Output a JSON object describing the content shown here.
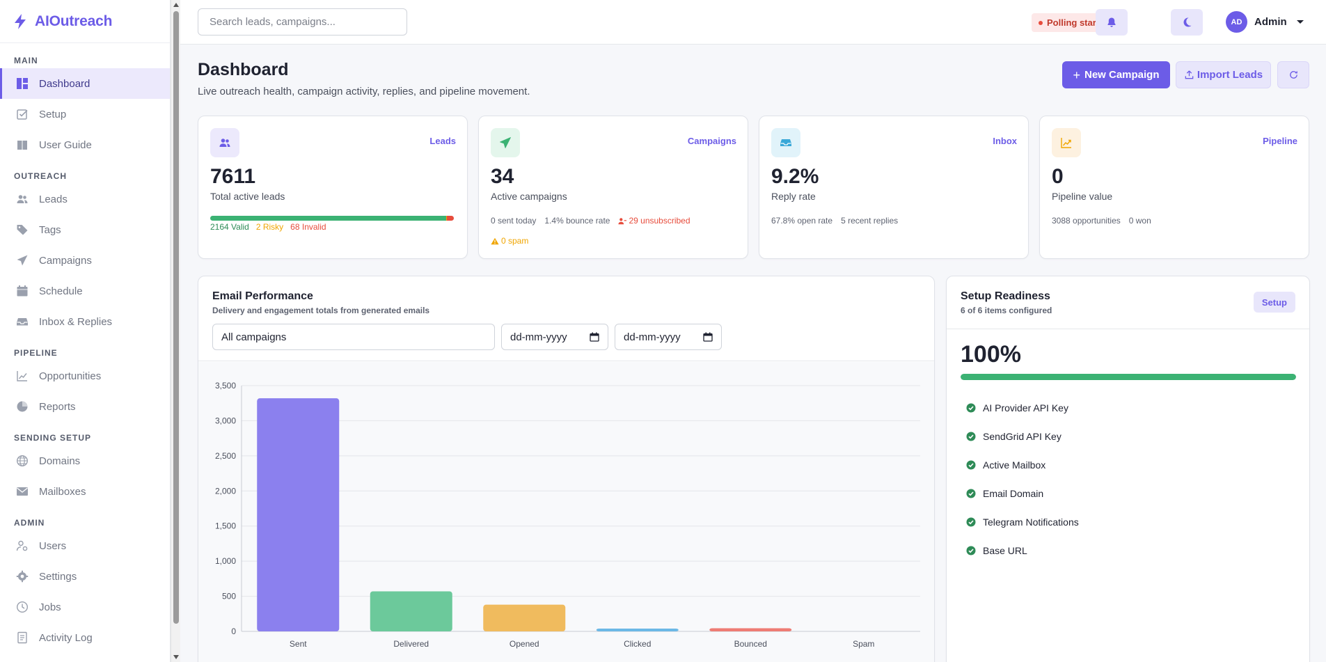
{
  "app": {
    "name": "AIOutreach"
  },
  "sidebar": {
    "sections": [
      {
        "title": "MAIN",
        "items": [
          {
            "label": "Dashboard",
            "icon": "dashboard-icon",
            "active": true
          },
          {
            "label": "Setup",
            "icon": "checkbox-icon"
          },
          {
            "label": "User Guide",
            "icon": "book-icon"
          }
        ]
      },
      {
        "title": "OUTREACH",
        "items": [
          {
            "label": "Leads",
            "icon": "users-icon"
          },
          {
            "label": "Tags",
            "icon": "tag-icon"
          },
          {
            "label": "Campaigns",
            "icon": "paper-plane-icon"
          },
          {
            "label": "Schedule",
            "icon": "calendar-icon"
          },
          {
            "label": "Inbox & Replies",
            "icon": "inbox-icon"
          }
        ]
      },
      {
        "title": "PIPELINE",
        "items": [
          {
            "label": "Opportunities",
            "icon": "trend-icon"
          },
          {
            "label": "Reports",
            "icon": "pie-chart-icon"
          }
        ]
      },
      {
        "title": "SENDING SETUP",
        "items": [
          {
            "label": "Domains",
            "icon": "globe-icon"
          },
          {
            "label": "Mailboxes",
            "icon": "envelope-icon"
          }
        ]
      },
      {
        "title": "ADMIN",
        "items": [
          {
            "label": "Users",
            "icon": "user-gear-icon"
          },
          {
            "label": "Settings",
            "icon": "gear-icon"
          },
          {
            "label": "Jobs",
            "icon": "clock-icon"
          },
          {
            "label": "Activity Log",
            "icon": "document-icon"
          }
        ]
      }
    ]
  },
  "topbar": {
    "search_placeholder": "Search leads, campaigns...",
    "polling_status": "Polling started",
    "user_initials": "AD",
    "user_name": "Admin"
  },
  "header": {
    "title": "Dashboard",
    "subtitle": "Live outreach health, campaign activity, replies, and pipeline movement.",
    "new_campaign": "New Campaign",
    "import_leads": "Import Leads"
  },
  "stats": {
    "leads": {
      "tag": "Leads",
      "value": "7611",
      "label": "Total active leads",
      "valid": "2164 Valid",
      "risky": "2 Risky",
      "invalid": "68 Invalid",
      "bar_fractions": {
        "valid": 0.9694,
        "risky": 0.0009,
        "invalid": 0.0297
      }
    },
    "campaigns": {
      "tag": "Campaigns",
      "value": "34",
      "label": "Active campaigns",
      "sent_today": "0 sent today",
      "bounce_rate": "1.4% bounce rate",
      "unsubscribed": "29 unsubscribed",
      "spam": "0 spam"
    },
    "inbox": {
      "tag": "Inbox",
      "value": "9.2%",
      "label": "Reply rate",
      "open_rate": "67.8% open rate",
      "recent_replies": "5 recent replies"
    },
    "pipeline": {
      "tag": "Pipeline",
      "value": "0",
      "label": "Pipeline value",
      "opportunities": "3088 opportunities",
      "won": "0 won"
    }
  },
  "email_performance": {
    "title": "Email Performance",
    "subtitle": "Delivery and engagement totals from generated emails",
    "campaign_filter": "All campaigns",
    "date_from": "dd-mm-yyyy",
    "date_to": "dd-mm-yyyy"
  },
  "chart_data": {
    "type": "bar",
    "categories": [
      "Sent",
      "Delivered",
      "Opened",
      "Clicked",
      "Bounced",
      "Spam"
    ],
    "values": [
      3320,
      570,
      380,
      40,
      45,
      0
    ],
    "colors": [
      "#8b80ee",
      "#6cc99b",
      "#f0bb5e",
      "#6cb8e6",
      "#ee7c74",
      "#cccccc"
    ],
    "ylim": [
      0,
      3500
    ],
    "yticks": [
      0,
      500,
      1000,
      1500,
      2000,
      2500,
      3000,
      3500
    ],
    "ytick_labels": [
      "0",
      "500",
      "1,000",
      "1,500",
      "2,000",
      "2,500",
      "3,000",
      "3,500"
    ],
    "grid": true
  },
  "setup": {
    "title": "Setup Readiness",
    "subtitle": "6 of 6 items configured",
    "button": "Setup",
    "percent": "100%",
    "progress": 1.0,
    "items": [
      "AI Provider API Key",
      "SendGrid API Key",
      "Active Mailbox",
      "Email Domain",
      "Telegram Notifications",
      "Base URL"
    ]
  },
  "colors": {
    "accent": "#6c5ce7",
    "success": "#3bb273",
    "warning": "#f0a500",
    "danger": "#e74c3c"
  }
}
